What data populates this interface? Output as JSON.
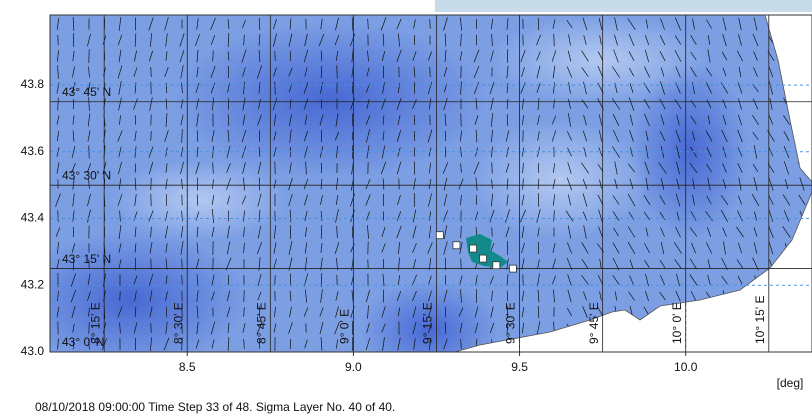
{
  "map": {
    "xlim": [
      8.087,
      10.38
    ],
    "ylim": [
      43.0,
      44.01
    ],
    "xticks": [
      {
        "value": 8.5,
        "label": "8.5"
      },
      {
        "value": 9.0,
        "label": "9.0"
      },
      {
        "value": 9.5,
        "label": "9.5"
      },
      {
        "value": 10.0,
        "label": "10.0"
      }
    ],
    "yticks": [
      {
        "value": 43.0,
        "label": "43.0"
      },
      {
        "value": 43.2,
        "label": "43.2"
      },
      {
        "value": 43.4,
        "label": "43.4"
      },
      {
        "value": 43.6,
        "label": "43.6"
      },
      {
        "value": 43.8,
        "label": "43.8"
      }
    ],
    "x_unit": "[deg]",
    "parallels": [
      {
        "value": 43.75,
        "label": "43° 45' N"
      },
      {
        "value": 43.5,
        "label": "43° 30' N"
      },
      {
        "value": 43.25,
        "label": "43° 15' N"
      },
      {
        "value": 43.0,
        "label": "43° 0' N"
      }
    ],
    "meridians": [
      {
        "value": 8.25,
        "label": "8° 15' E"
      },
      {
        "value": 8.5,
        "label": "8° 30' E"
      },
      {
        "value": 8.75,
        "label": "8° 45' E"
      },
      {
        "value": 9.0,
        "label": "9° 0' E"
      },
      {
        "value": 9.25,
        "label": "9° 15' E"
      },
      {
        "value": 9.5,
        "label": "9° 30' E"
      },
      {
        "value": 9.75,
        "label": "9° 45' E"
      },
      {
        "value": 10.0,
        "label": "10° 0' E"
      },
      {
        "value": 10.25,
        "label": "10° 15' E"
      }
    ],
    "particles": [
      {
        "lon": 9.26,
        "lat": 43.35
      },
      {
        "lon": 9.31,
        "lat": 43.32
      },
      {
        "lon": 9.36,
        "lat": 43.31
      },
      {
        "lon": 9.39,
        "lat": 43.28
      },
      {
        "lon": 9.43,
        "lat": 43.26
      },
      {
        "lon": 9.48,
        "lat": 43.25
      }
    ],
    "status": "08/10/2018 09:00:00  Time Step 33 of 48. Sigma Layer No. 40 of 40."
  }
}
